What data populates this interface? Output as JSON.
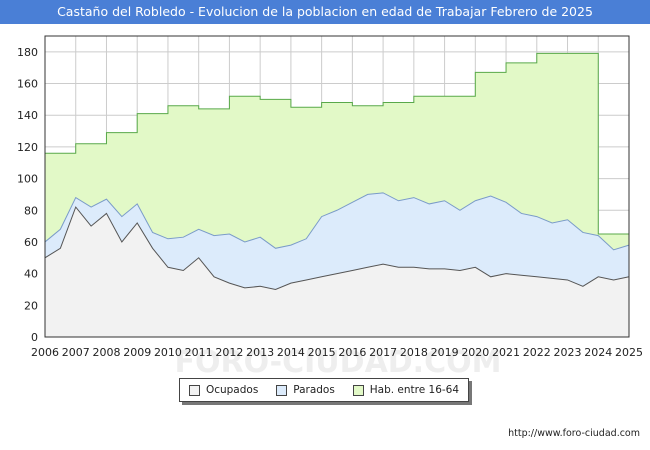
{
  "header": {
    "title": "Castaño del Robledo - Evolucion de la poblacion en edad de Trabajar Febrero de 2025"
  },
  "footer": {
    "url": "http://www.foro-ciudad.com",
    "watermark": "FORO-CIUDAD.COM"
  },
  "colors": {
    "title_bg": "#4a7fd6",
    "ocupados_fill": "#f2f2f2",
    "ocupados_line": "#555555",
    "parados_fill": "#dcebfb",
    "parados_line": "#7a9bc8",
    "hab_fill": "#e2f9c7",
    "hab_line": "#59a94a",
    "grid": "#cccccc"
  },
  "chart_data": {
    "type": "area",
    "title": "Castaño del Robledo - Evolucion de la poblacion en edad de Trabajar Febrero de 2025",
    "xlabel": "",
    "ylabel": "",
    "xlim": [
      2006,
      2025
    ],
    "ylim": [
      0,
      190
    ],
    "yticks": [
      0,
      20,
      40,
      60,
      80,
      100,
      120,
      140,
      160,
      180
    ],
    "xticks": [
      "2006",
      "2007",
      "2008",
      "2009",
      "2010",
      "2011",
      "2012",
      "2013",
      "2014",
      "2015",
      "2016",
      "2017",
      "2018",
      "2019",
      "2020",
      "2021",
      "2022",
      "2023",
      "2024",
      "2025"
    ],
    "legend": [
      "Ocupados",
      "Parados",
      "Hab. entre 16-64"
    ],
    "legend_position": "bottom",
    "grid": true,
    "series": [
      {
        "name": "Hab. entre 16-64",
        "type": "step",
        "x": [
          2006,
          2007,
          2008,
          2009,
          2010,
          2011,
          2012,
          2013,
          2014,
          2015,
          2016,
          2017,
          2018,
          2019,
          2020,
          2021,
          2022,
          2023,
          2023.92,
          2024
        ],
        "values": [
          116,
          122,
          129,
          141,
          146,
          144,
          152,
          150,
          145,
          148,
          146,
          148,
          152,
          152,
          167,
          173,
          179,
          179,
          179,
          65
        ]
      },
      {
        "name": "Parados",
        "type": "line",
        "x": [
          2006,
          2006.5,
          2007,
          2007.5,
          2008,
          2008.5,
          2009,
          2009.5,
          2010,
          2010.5,
          2011,
          2011.5,
          2012,
          2012.5,
          2013,
          2013.5,
          2014,
          2014.5,
          2015,
          2015.5,
          2016,
          2016.5,
          2017,
          2017.5,
          2018,
          2018.5,
          2019,
          2019.5,
          2020,
          2020.5,
          2021,
          2021.5,
          2022,
          2022.5,
          2023,
          2023.5,
          2024,
          2024.5,
          2025
        ],
        "values": [
          60,
          68,
          88,
          82,
          87,
          76,
          84,
          66,
          62,
          63,
          68,
          64,
          65,
          60,
          63,
          56,
          58,
          62,
          76,
          80,
          85,
          90,
          91,
          86,
          88,
          84,
          86,
          80,
          86,
          89,
          85,
          78,
          76,
          72,
          74,
          66,
          64,
          55,
          58
        ]
      },
      {
        "name": "Ocupados",
        "type": "line",
        "x": [
          2006,
          2006.5,
          2007,
          2007.5,
          2008,
          2008.5,
          2009,
          2009.5,
          2010,
          2010.5,
          2011,
          2011.5,
          2012,
          2012.5,
          2013,
          2013.5,
          2014,
          2014.5,
          2015,
          2015.5,
          2016,
          2016.5,
          2017,
          2017.5,
          2018,
          2018.5,
          2019,
          2019.5,
          2020,
          2020.5,
          2021,
          2021.5,
          2022,
          2022.5,
          2023,
          2023.5,
          2024,
          2024.5,
          2025
        ],
        "values": [
          50,
          56,
          82,
          70,
          78,
          60,
          72,
          56,
          44,
          42,
          50,
          38,
          34,
          31,
          32,
          30,
          34,
          36,
          38,
          40,
          42,
          44,
          46,
          44,
          44,
          43,
          43,
          42,
          44,
          38,
          40,
          39,
          38,
          37,
          36,
          32,
          38,
          36,
          38
        ]
      }
    ]
  }
}
